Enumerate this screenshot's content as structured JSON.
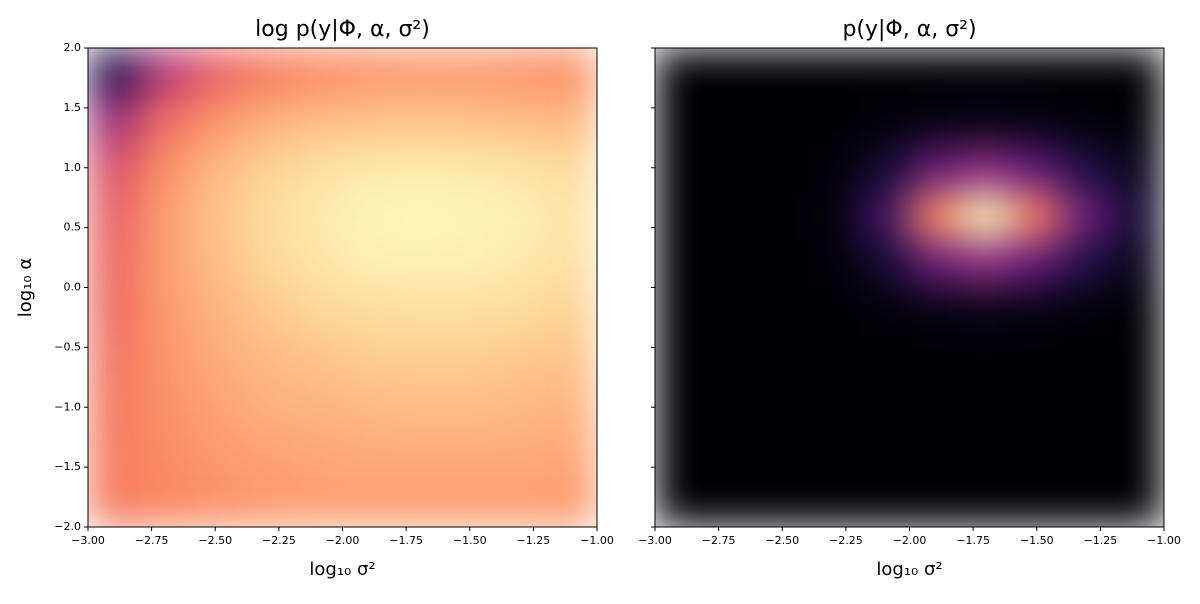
{
  "chart_data": [
    {
      "type": "heatmap",
      "title": "log p(y|Φ, α, σ²)",
      "xlabel": "log₁₀ σ²",
      "ylabel": "log₁₀ α",
      "colormap": "magma",
      "xlim": [
        -3,
        -1
      ],
      "ylim": [
        -2,
        2
      ],
      "xticks": [
        {
          "value": -3,
          "label": "−3.00"
        },
        {
          "value": -2.75,
          "label": "−2.75"
        },
        {
          "value": -2.5,
          "label": "−2.50"
        },
        {
          "value": -2.25,
          "label": "−2.25"
        },
        {
          "value": -2,
          "label": "−2.00"
        },
        {
          "value": -1.75,
          "label": "−1.75"
        },
        {
          "value": -1.5,
          "label": "−1.50"
        },
        {
          "value": -1.25,
          "label": "−1.25"
        },
        {
          "value": -1,
          "label": "−1.00"
        }
      ],
      "yticks": [
        {
          "value": -2,
          "label": "−2.0"
        },
        {
          "value": -1.5,
          "label": "−1.5"
        },
        {
          "value": -1,
          "label": "−1.0"
        },
        {
          "value": -0.5,
          "label": "−0.5"
        },
        {
          "value": 0,
          "label": "0.0"
        },
        {
          "value": 0.5,
          "label": "0.5"
        },
        {
          "value": 1,
          "label": "1.0"
        },
        {
          "value": 1.5,
          "label": "1.5"
        },
        {
          "value": 2,
          "label": "2.0"
        }
      ],
      "z": [
        [
          0.72,
          0.75,
          0.77,
          0.79,
          0.8,
          0.8,
          0.8,
          0.8,
          0.8,
          0.79
        ],
        [
          0.72,
          0.76,
          0.79,
          0.81,
          0.82,
          0.83,
          0.83,
          0.83,
          0.83,
          0.82
        ],
        [
          0.71,
          0.77,
          0.81,
          0.84,
          0.85,
          0.86,
          0.87,
          0.87,
          0.86,
          0.85
        ],
        [
          0.7,
          0.78,
          0.83,
          0.86,
          0.88,
          0.9,
          0.9,
          0.9,
          0.89,
          0.88
        ],
        [
          0.68,
          0.79,
          0.85,
          0.89,
          0.92,
          0.93,
          0.94,
          0.94,
          0.93,
          0.91
        ],
        [
          0.67,
          0.8,
          0.87,
          0.92,
          0.95,
          0.97,
          0.97,
          0.97,
          0.96,
          0.94
        ],
        [
          0.65,
          0.8,
          0.88,
          0.93,
          0.96,
          0.98,
          0.99,
          0.98,
          0.97,
          0.95
        ],
        [
          0.6,
          0.77,
          0.86,
          0.91,
          0.94,
          0.96,
          0.96,
          0.96,
          0.95,
          0.93
        ],
        [
          0.45,
          0.68,
          0.78,
          0.84,
          0.87,
          0.88,
          0.89,
          0.88,
          0.87,
          0.86
        ],
        [
          0.15,
          0.5,
          0.65,
          0.72,
          0.76,
          0.78,
          0.79,
          0.79,
          0.78,
          0.77
        ]
      ]
    },
    {
      "type": "heatmap",
      "title": "p(y|Φ, α, σ²)",
      "xlabel": "log₁₀ σ²",
      "colormap": "magma",
      "xlim": [
        -3,
        -1
      ],
      "ylim": [
        -2,
        2
      ],
      "xticks": [
        {
          "value": -3,
          "label": "−3.00"
        },
        {
          "value": -2.75,
          "label": "−2.75"
        },
        {
          "value": -2.5,
          "label": "−2.50"
        },
        {
          "value": -2.25,
          "label": "−2.25"
        },
        {
          "value": -2,
          "label": "−2.00"
        },
        {
          "value": -1.75,
          "label": "−1.75"
        },
        {
          "value": -1.5,
          "label": "−1.50"
        },
        {
          "value": -1.25,
          "label": "−1.25"
        },
        {
          "value": -1,
          "label": "−1.00"
        }
      ],
      "yticks": [
        -2,
        -1.5,
        -1,
        -0.5,
        0,
        0.5,
        1,
        1.5,
        2
      ],
      "z": [
        [
          0,
          0,
          0,
          0,
          0,
          0,
          0,
          0,
          0,
          0
        ],
        [
          0,
          0,
          0,
          0,
          0,
          0,
          0,
          0,
          0,
          0
        ],
        [
          0,
          0,
          0,
          0,
          0,
          0,
          0,
          0,
          0,
          0
        ],
        [
          0,
          0,
          0,
          0,
          0,
          0,
          0,
          0,
          0,
          0
        ],
        [
          0,
          0,
          0,
          0,
          0.01,
          0.02,
          0.03,
          0.02,
          0.01,
          0
        ],
        [
          0,
          0,
          0,
          0.01,
          0.09,
          0.31,
          0.41,
          0.29,
          0.13,
          0.04
        ],
        [
          0,
          0,
          0,
          0.02,
          0.22,
          0.75,
          0.99,
          0.71,
          0.32,
          0.1
        ],
        [
          0,
          0,
          0,
          0.01,
          0.09,
          0.31,
          0.41,
          0.29,
          0.13,
          0.04
        ],
        [
          0,
          0,
          0,
          0,
          0.01,
          0.02,
          0.03,
          0.02,
          0.01,
          0
        ],
        [
          0,
          0,
          0,
          0,
          0,
          0,
          0,
          0,
          0,
          0
        ]
      ]
    }
  ]
}
